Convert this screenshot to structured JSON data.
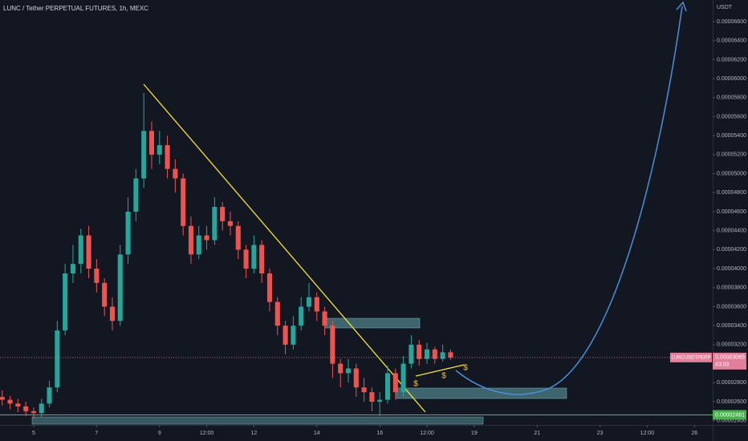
{
  "chart_data": {
    "type": "candlestick",
    "title": "LUNC / Tether PERPETUAL FUTURES, 1h, MEXC",
    "y_unit": "USDT",
    "up_color": "#26a69a",
    "down_color": "#ef5350",
    "grid": false,
    "x": [
      4,
      4.25,
      4.5,
      4.75,
      5,
      5.25,
      5.5,
      5.75,
      6,
      6.25,
      6.5,
      6.75,
      7,
      7.25,
      7.5,
      7.75,
      8,
      8.25,
      8.5,
      8.75,
      9,
      9.25,
      9.5,
      9.75,
      10,
      10.25,
      10.5,
      10.75,
      11,
      11.25,
      11.5,
      11.75,
      12,
      12.25,
      12.5,
      12.75,
      13,
      13.25,
      13.5,
      13.75,
      14,
      14.25,
      14.5,
      14.75,
      15,
      15.25,
      15.5,
      15.75,
      16,
      16.25,
      16.5,
      16.75,
      17,
      17.25,
      17.5,
      17.75,
      18,
      18.25
    ],
    "open": [
      2.65e-05,
      2.62e-05,
      2.58e-05,
      2.55e-05,
      2.5e-05,
      2.48e-05,
      2.58e-05,
      2.75e-05,
      3.35e-05,
      3.95e-05,
      4.05e-05,
      4.35e-05,
      4e-05,
      3.85e-05,
      3.6e-05,
      3.45e-05,
      4.15e-05,
      4.6e-05,
      4.95e-05,
      5.45e-05,
      5.2e-05,
      5.3e-05,
      5.05e-05,
      4.95e-05,
      4.45e-05,
      4.15e-05,
      4.35e-05,
      4.3e-05,
      4.65e-05,
      4.5e-05,
      4.45e-05,
      4.2e-05,
      4e-05,
      4.25e-05,
      3.95e-05,
      3.65e-05,
      3.4e-05,
      3.2e-05,
      3.4e-05,
      3.6e-05,
      3.7e-05,
      3.55e-05,
      3.4e-05,
      3e-05,
      2.9e-05,
      2.95e-05,
      2.75e-05,
      2.7e-05,
      2.6e-05,
      2.62e-05,
      2.9e-05,
      2.7e-05,
      3e-05,
      3.2e-05,
      3.05e-05,
      3.15e-05,
      3.05e-05,
      3.12e-05
    ],
    "high": [
      2.72e-05,
      2.66e-05,
      2.63e-05,
      2.6e-05,
      2.54e-05,
      2.63e-05,
      2.82e-05,
      3.45e-05,
      4.05e-05,
      4.25e-05,
      4.42e-05,
      4.45e-05,
      4.1e-05,
      3.9e-05,
      3.7e-05,
      4.25e-05,
      4.75e-05,
      5.05e-05,
      5.85e-05,
      5.55e-05,
      5.45e-05,
      5.4e-05,
      5.15e-05,
      5e-05,
      4.55e-05,
      4.45e-05,
      4.45e-05,
      4.75e-05,
      4.7e-05,
      4.6e-05,
      4.5e-05,
      4.25e-05,
      4.35e-05,
      4.3e-05,
      4e-05,
      3.7e-05,
      3.45e-05,
      3.5e-05,
      3.7e-05,
      3.85e-05,
      3.75e-05,
      3.6e-05,
      3.45e-05,
      3.05e-05,
      3.05e-05,
      3e-05,
      2.85e-05,
      2.75e-05,
      2.7e-05,
      2.98e-05,
      2.95e-05,
      3.08e-05,
      3.3e-05,
      3.25e-05,
      3.22e-05,
      3.18e-05,
      3.2e-05,
      3.15e-05
    ],
    "low": [
      2.56e-05,
      2.52e-05,
      2.49e-05,
      2.45e-05,
      2.42e-05,
      2.44e-05,
      2.54e-05,
      2.7e-05,
      3.3e-05,
      3.85e-05,
      3.95e-05,
      3.9e-05,
      3.75e-05,
      3.5e-05,
      3.35e-05,
      3.4e-05,
      4.05e-05,
      4.5e-05,
      4.85e-05,
      5.05e-05,
      5.1e-05,
      4.95e-05,
      4.8e-05,
      4.35e-05,
      4.05e-05,
      4.1e-05,
      4.2e-05,
      4.25e-05,
      4.4e-05,
      4.35e-05,
      4.1e-05,
      3.9e-05,
      3.95e-05,
      3.85e-05,
      3.55e-05,
      3.3e-05,
      3.1e-05,
      3.15e-05,
      3.35e-05,
      3.55e-05,
      3.45e-05,
      3.3e-05,
      2.85e-05,
      2.75e-05,
      2.8e-05,
      2.65e-05,
      2.6e-05,
      2.5e-05,
      2.45e-05,
      2.58e-05,
      2.62e-05,
      2.65e-05,
      2.95e-05,
      2.98e-05,
      3e-05,
      3e-05,
      3.02e-05,
      3.04e-05
    ],
    "close": [
      2.62e-05,
      2.58e-05,
      2.55e-05,
      2.5e-05,
      2.48e-05,
      2.58e-05,
      2.75e-05,
      3.35e-05,
      3.95e-05,
      4.05e-05,
      4.35e-05,
      4e-05,
      3.85e-05,
      3.6e-05,
      3.45e-05,
      4.15e-05,
      4.6e-05,
      4.95e-05,
      5.45e-05,
      5.2e-05,
      5.3e-05,
      5.05e-05,
      4.95e-05,
      4.45e-05,
      4.15e-05,
      4.35e-05,
      4.3e-05,
      4.65e-05,
      4.5e-05,
      4.45e-05,
      4.2e-05,
      4e-05,
      4.25e-05,
      3.95e-05,
      3.65e-05,
      3.4e-05,
      3.2e-05,
      3.4e-05,
      3.6e-05,
      3.7e-05,
      3.55e-05,
      3.4e-05,
      3e-05,
      2.9e-05,
      2.95e-05,
      2.75e-05,
      2.7e-05,
      2.6e-05,
      2.62e-05,
      2.9e-05,
      2.7e-05,
      3e-05,
      3.2e-05,
      3.05e-05,
      3.15e-05,
      3.05e-05,
      3.12e-05,
      3.065e-05
    ],
    "xlim": [
      3.93,
      26.58
    ],
    "ylim": [
      2.355e-05,
      6.828e-05
    ],
    "xticks": [
      5,
      7,
      9,
      {
        "value": 10.5,
        "label": "12:00"
      },
      12,
      14,
      16,
      {
        "value": 17.5,
        "label": "12:00"
      },
      19,
      21,
      23,
      {
        "value": 24.5,
        "label": "12:00"
      },
      26
    ],
    "yticks": [
      {
        "value": 2.4e-05,
        "label": "0.00002400"
      },
      {
        "value": 2.6e-05,
        "label": "0.00002600"
      },
      {
        "value": 2.8e-05,
        "label": "0.00002800"
      },
      {
        "value": 3.2e-05,
        "label": "0.00003200"
      },
      {
        "value": 3.4e-05,
        "label": "0.00003400"
      },
      {
        "value": 3.6e-05,
        "label": "0.00003600"
      },
      {
        "value": 3.8e-05,
        "label": "0.00003800"
      },
      {
        "value": 4e-05,
        "label": "0.00004000"
      },
      {
        "value": 4.2e-05,
        "label": "0.00004200"
      },
      {
        "value": 4.4e-05,
        "label": "0.00004400"
      },
      {
        "value": 4.6e-05,
        "label": "0.00004600"
      },
      {
        "value": 4.8e-05,
        "label": "0.00004800"
      },
      {
        "value": 5e-05,
        "label": "0.00005000"
      },
      {
        "value": 5.2e-05,
        "label": "0.00005200"
      },
      {
        "value": 5.4e-05,
        "label": "0.00005400"
      },
      {
        "value": 5.6e-05,
        "label": "0.00005600"
      },
      {
        "value": 5.8e-05,
        "label": "0.00005800"
      },
      {
        "value": 6e-05,
        "label": "0.00006000"
      },
      {
        "value": 6.2e-05,
        "label": "0.00006200"
      },
      {
        "value": 6.4e-05,
        "label": "0.00006400"
      },
      {
        "value": 6.6e-05,
        "label": "0.00006600"
      }
    ],
    "last_price": {
      "value": 3.065e-05,
      "label": "0.00003065",
      "countdown": "43:03",
      "symbol": "LUNCUSDTPERP",
      "color": "#e0809c"
    },
    "support_line": {
      "value": 2.461e-05,
      "label": "0.00002461",
      "color": "#4caf50"
    },
    "annotations": [
      "$",
      "$",
      "$"
    ]
  }
}
